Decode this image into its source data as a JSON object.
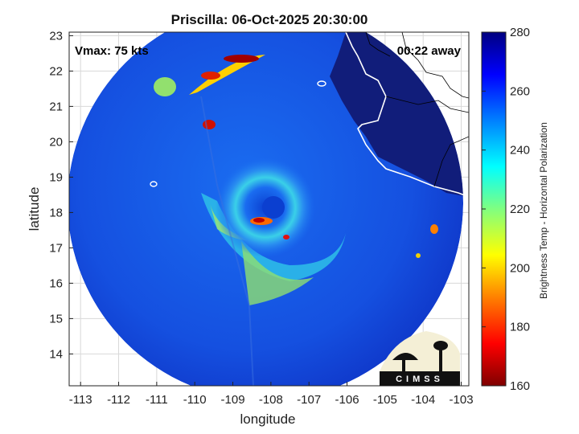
{
  "title": "Priscilla: 06-Oct-2025 20:30:00",
  "xlabel": "longitude",
  "ylabel": "latitude",
  "vmax_text": "Vmax: 75 kts",
  "away_text": "00:22 away",
  "colorbar": {
    "label": "Brightness Temp - Horizontal Polarization",
    "ticks": [
      "280",
      "260",
      "240",
      "220",
      "200",
      "180",
      "160"
    ],
    "min": 160,
    "max": 280,
    "stops": [
      "#7f0000",
      "#ff0000",
      "#ff8000",
      "#ffff00",
      "#80ff80",
      "#00ffff",
      "#0080ff",
      "#0000ff",
      "#000080"
    ]
  },
  "x_ticks": [
    "-113",
    "-112",
    "-111",
    "-110",
    "-109",
    "-108",
    "-107",
    "-106",
    "-105",
    "-104",
    "-103"
  ],
  "y_ticks": [
    "23",
    "22",
    "21",
    "20",
    "19",
    "18",
    "17",
    "16",
    "15",
    "14"
  ],
  "xlim": [
    -113.3,
    -102.8
  ],
  "ylim": [
    13.1,
    23.1
  ],
  "storm_center": {
    "lon": -108.0,
    "lat": 18.2
  },
  "logo": {
    "text": "CIMSS"
  },
  "colors": {
    "background": "#ffffff",
    "land": "#111d7a",
    "coast": "#ffffff"
  }
}
